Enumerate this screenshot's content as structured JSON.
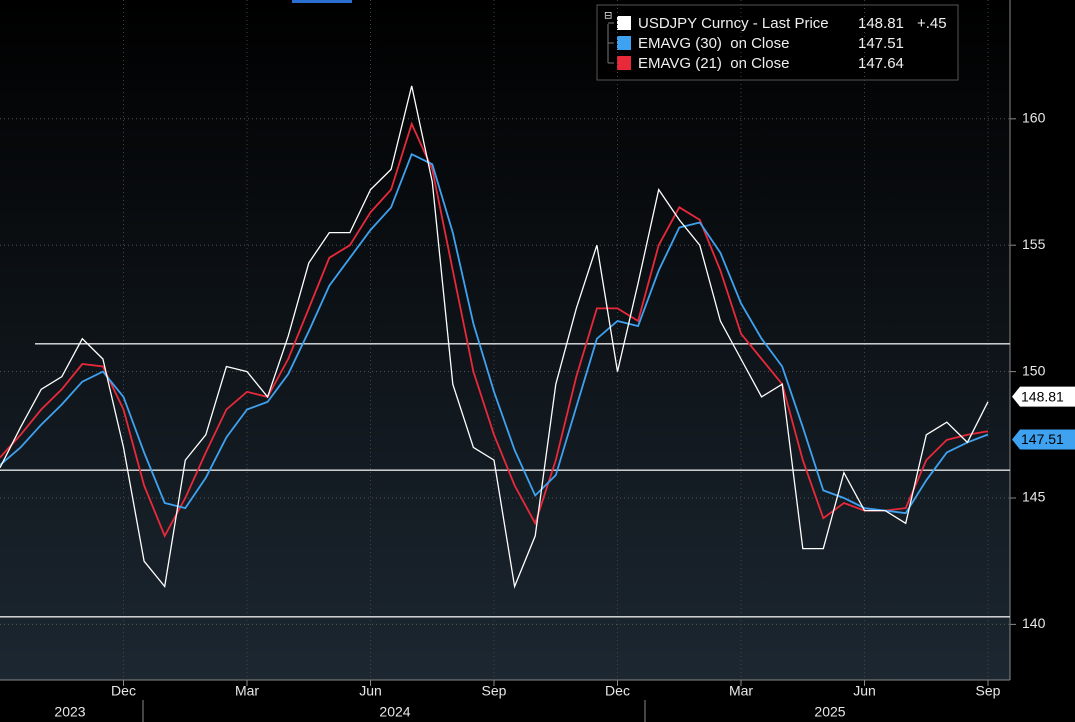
{
  "chart_data": {
    "type": "line",
    "categories": [
      null,
      null,
      null,
      null,
      null,
      null,
      "Dec",
      null,
      null,
      null,
      null,
      null,
      "Mar",
      null,
      null,
      null,
      null,
      null,
      "Jun",
      null,
      null,
      null,
      null,
      null,
      "Sep",
      null,
      null,
      null,
      null,
      null,
      "Dec",
      null,
      null,
      null,
      null,
      null,
      "Mar",
      null,
      null,
      null,
      null,
      null,
      "Jun",
      null,
      null,
      null,
      null,
      null,
      "Sep"
    ],
    "year_labels": [
      "2023",
      "2024",
      "2025"
    ],
    "series": [
      {
        "name": "USDJPY Curncy - Last Price",
        "color": "#ffffff",
        "values": [
          146.2,
          147.8,
          149.3,
          149.8,
          151.3,
          150.5,
          147.0,
          142.5,
          141.5,
          146.5,
          147.5,
          150.2,
          150.0,
          149.0,
          151.4,
          154.3,
          155.5,
          155.5,
          157.2,
          158.0,
          161.3,
          157.5,
          149.5,
          147.0,
          146.5,
          141.5,
          143.5,
          149.5,
          152.5,
          155.0,
          150.0,
          153.5,
          157.2,
          156.0,
          155.0,
          152.0,
          150.5,
          149.0,
          149.5,
          143.0,
          143.0,
          146.0,
          144.5,
          144.5,
          144.0,
          147.5,
          148.0,
          147.2,
          148.81
        ]
      },
      {
        "name": "EMAVG (30)  on Close",
        "color": "#3fa2f0",
        "values": [
          146.3,
          147.0,
          147.9,
          148.7,
          149.6,
          150.0,
          149.0,
          146.8,
          144.8,
          144.6,
          145.8,
          147.4,
          148.5,
          148.8,
          149.9,
          151.6,
          153.4,
          154.5,
          155.6,
          156.5,
          158.6,
          158.2,
          155.5,
          151.9,
          149.2,
          146.9,
          145.1,
          145.9,
          148.6,
          151.3,
          152.0,
          151.8,
          154.0,
          155.7,
          155.9,
          154.7,
          152.7,
          151.3,
          150.2,
          147.8,
          145.3,
          145.0,
          144.6,
          144.5,
          144.4,
          145.7,
          146.8,
          147.2,
          147.51
        ]
      },
      {
        "name": "EMAVG (21)  on Close",
        "color": "#e8293a",
        "values": [
          146.6,
          147.5,
          148.5,
          149.3,
          150.3,
          150.2,
          148.5,
          145.5,
          143.5,
          145.0,
          146.8,
          148.5,
          149.2,
          149.0,
          150.5,
          152.5,
          154.5,
          155.0,
          156.3,
          157.2,
          159.8,
          158.0,
          154.0,
          150.0,
          147.5,
          145.5,
          144.0,
          146.5,
          149.8,
          152.5,
          152.5,
          152.0,
          155.0,
          156.5,
          156.0,
          154.0,
          151.5,
          150.5,
          149.5,
          146.5,
          144.2,
          144.8,
          144.5,
          144.5,
          144.6,
          146.5,
          147.3,
          147.5,
          147.64
        ]
      }
    ],
    "change": "+.45",
    "reference_lines": [
      151.1,
      146.1,
      140.3
    ],
    "ylim": [
      137.8,
      164.7
    ],
    "yticks": [
      140,
      145,
      150,
      155,
      160
    ],
    "grid": true
  }
}
